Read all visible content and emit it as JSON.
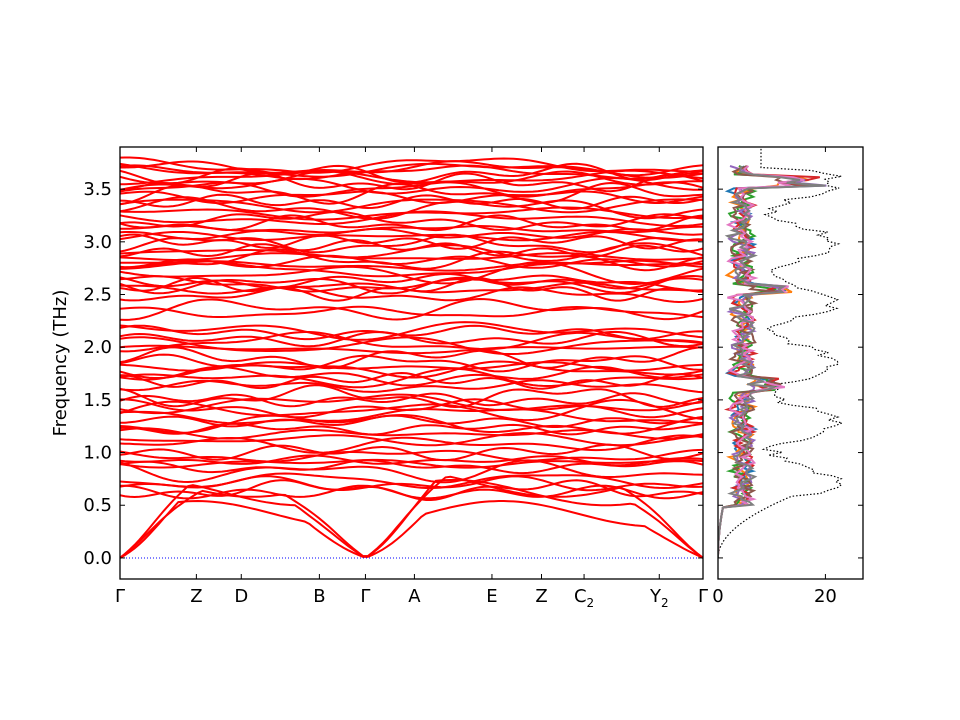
{
  "chart_data": [
    {
      "type": "line",
      "title": "",
      "ylabel": "Frequency (THz)",
      "xlabel": "",
      "ylim": [
        -0.2,
        3.9
      ],
      "yticks": [
        "0.0",
        "0.5",
        "1.0",
        "1.5",
        "2.0",
        "2.5",
        "3.0",
        "3.5"
      ],
      "x_tick_labels": [
        {
          "label": "Γ",
          "sub": ""
        },
        {
          "label": "Z",
          "sub": ""
        },
        {
          "label": "D",
          "sub": ""
        },
        {
          "label": "B",
          "sub": ""
        },
        {
          "label": "Γ",
          "sub": ""
        },
        {
          "label": "A",
          "sub": ""
        },
        {
          "label": "E",
          "sub": ""
        },
        {
          "label": "Z",
          "sub": ""
        },
        {
          "label": "C",
          "sub": "2"
        },
        {
          "label": "Y",
          "sub": "2"
        },
        {
          "label": "Γ",
          "sub": ""
        }
      ],
      "x_tick_positions": [
        0,
        0.131,
        0.208,
        0.342,
        0.421,
        0.505,
        0.638,
        0.723,
        0.796,
        0.925,
        1.0
      ],
      "series_color": "#ff0000",
      "reference_line": {
        "y": 0.0,
        "color": "#0000ff",
        "style": "dotted"
      },
      "optic_band_levels": [
        0.62,
        0.7,
        0.82,
        0.9,
        0.97,
        1.08,
        1.18,
        1.27,
        1.35,
        1.42,
        1.5,
        1.63,
        1.7,
        1.79,
        1.85,
        1.98,
        2.05,
        2.14,
        2.33,
        2.5,
        2.56,
        2.6,
        2.7,
        2.77,
        2.83,
        2.9,
        2.98,
        3.05,
        3.12,
        3.2,
        3.27,
        3.35,
        3.43,
        3.5,
        3.56,
        3.61,
        3.66,
        3.7
      ]
    },
    {
      "type": "line",
      "title": "",
      "xlabel": "",
      "ylabel": "",
      "xlim": [
        0,
        27
      ],
      "xticks": [
        "0",
        "20"
      ],
      "ylim": [
        -0.2,
        3.9
      ],
      "series_colors": [
        "#1f77b4",
        "#ff7f0e",
        "#2ca02c",
        "#d62728",
        "#9467bd",
        "#8c564b",
        "#e377c2",
        "#7f7f7f"
      ],
      "total_dos_style": {
        "color": "#000000",
        "style": "dotted"
      }
    }
  ]
}
